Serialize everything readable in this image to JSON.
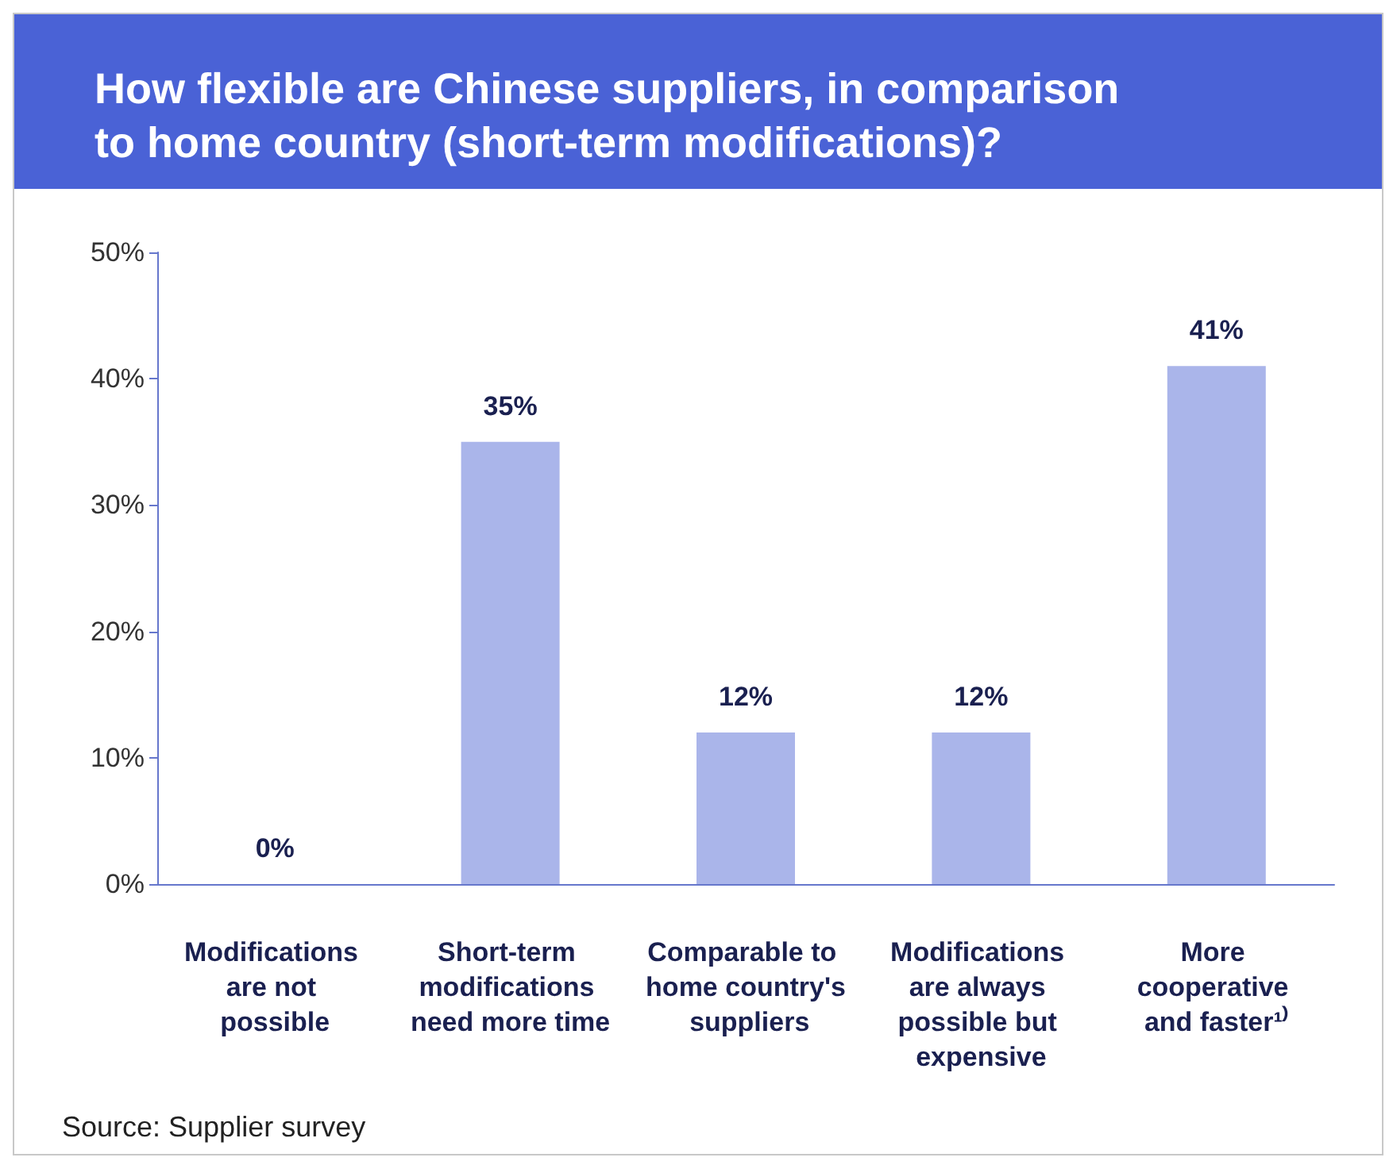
{
  "chart_data": {
    "type": "bar",
    "title": "How flexible are Chinese suppliers, in comparison to home country (short-term modifications)?",
    "categories": [
      "Modifications are not possible",
      "Short-term modifications need more time",
      "Comparable to home country's suppliers",
      "Modifications are always possible but expensive",
      "More cooperative and faster¹⁾"
    ],
    "values": [
      0,
      35,
      12,
      12,
      41
    ],
    "color": "#aab5ea",
    "value_labels": [
      "0%",
      "35%",
      "12%",
      "12%",
      "41%"
    ],
    "ylim": [
      0,
      50
    ],
    "yticks": [
      {
        "value": 0,
        "label": "0%"
      },
      {
        "value": 10,
        "label": "10%"
      },
      {
        "value": 20,
        "label": "20%"
      },
      {
        "value": 30,
        "label": "30%"
      },
      {
        "value": 40,
        "label": "40%"
      },
      {
        "value": 50,
        "label": "50%"
      }
    ],
    "grid": false,
    "annotations": [
      "Source: Supplier survey"
    ]
  }
}
